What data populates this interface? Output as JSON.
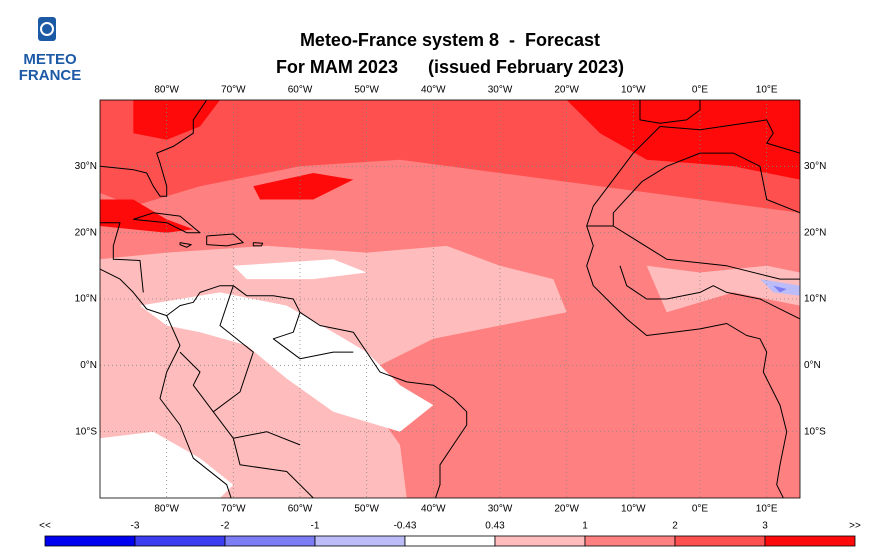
{
  "logo": {
    "line1": "METEO",
    "line2": "FRANCE"
  },
  "title": {
    "line1": "Meteo-France system 8  -  Forecast",
    "line2": "For MAM 2023      (issued February 2023)"
  },
  "map": {
    "xlim": [
      -90,
      15
    ],
    "ylim": [
      -20,
      40
    ],
    "xticks": [
      {
        "value": -80,
        "label": "80°W"
      },
      {
        "value": -70,
        "label": "70°W"
      },
      {
        "value": -60,
        "label": "60°W"
      },
      {
        "value": -50,
        "label": "50°W"
      },
      {
        "value": -40,
        "label": "40°W"
      },
      {
        "value": -30,
        "label": "30°W"
      },
      {
        "value": -20,
        "label": "20°W"
      },
      {
        "value": -10,
        "label": "10°W"
      },
      {
        "value": 0,
        "label": "0°E"
      },
      {
        "value": 10,
        "label": "10°E"
      }
    ],
    "yticks": [
      {
        "value": 30,
        "label": "30°N"
      },
      {
        "value": 20,
        "label": "20°N"
      },
      {
        "value": 10,
        "label": "10°N"
      },
      {
        "value": 0,
        "label": "0°N"
      },
      {
        "value": -10,
        "label": "10°S"
      }
    ]
  },
  "colorbar": {
    "labels": [
      "<<",
      "-3",
      "-2",
      "-1",
      "-0.43",
      "0.43",
      "1",
      "2",
      "3",
      ">>"
    ],
    "colors": [
      "#0000f0",
      "#3c3cf0",
      "#7c7cf4",
      "#bcbcf8",
      "#ffffff",
      "#ffbcbc",
      "#ff8080",
      "#ff5050",
      "#ff0a0a"
    ]
  }
}
